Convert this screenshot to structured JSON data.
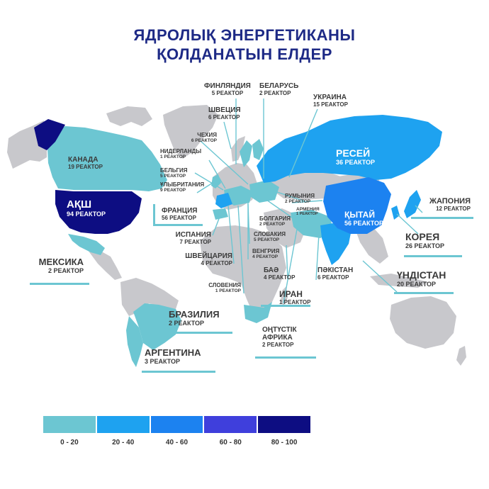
{
  "title": {
    "line1": "ЯДРОЛЫҚ ЭНЕРГЕТИКАНЫ",
    "line2": "ҚОЛДАНАТЫН ЕЛДЕР"
  },
  "colors": {
    "land": "#c8c8cc",
    "bin1": "#6cc6d2",
    "bin2": "#1ea2f0",
    "bin3": "#1c82f0",
    "bin4": "#3f3fdc",
    "bin5": "#0d0d82",
    "leader": "#6cc6d2"
  },
  "labels": {
    "finland": {
      "name": "ФИНЛЯНДИЯ",
      "count": "5 РЕАКТОР"
    },
    "belarus": {
      "name": "БЕЛАРУСЬ",
      "count": "2 РЕАКТОР"
    },
    "ukraine": {
      "name": "УКРАИНА",
      "count": "15 РЕАКТОР"
    },
    "sweden": {
      "name": "ШВЕЦИЯ",
      "count": "6 РЕАКТОР"
    },
    "czech": {
      "name": "ЧЕХИЯ",
      "count": "6 РЕАКТОР"
    },
    "netherlands": {
      "name": "НИДЕРЛАНДЫ",
      "count": "1 РЕАКТОР"
    },
    "belgium": {
      "name": "БЕЛЬГИЯ",
      "count": "5 РЕАКТОР"
    },
    "uk": {
      "name": "ҰЛЫБРИТАНИЯ",
      "count": "9 РЕАКТОР"
    },
    "france": {
      "name": "ФРАНЦИЯ",
      "count": "56 РЕАКТОР"
    },
    "spain": {
      "name": "ИСПАНИЯ",
      "count": "7 РЕАКТОР"
    },
    "switzerland": {
      "name": "ШВЕЙЦАРИЯ",
      "count": "4 РЕАКТОР"
    },
    "slovenia": {
      "name": "СЛОВЕНИЯ",
      "count": "1 РЕАКТОР"
    },
    "canada": {
      "name": "КАНАДА",
      "count": "19 РЕАКТОР"
    },
    "usa": {
      "name": "АҚШ",
      "count": "94 РЕАКТОР"
    },
    "mexico": {
      "name": "МЕКСИКА",
      "count": "2 РЕАКТОР"
    },
    "brazil": {
      "name": "БРАЗИЛИЯ",
      "count": "2 РЕАКТОР"
    },
    "argentina": {
      "name": "АРГЕНТИНА",
      "count": "3 РЕАКТОР"
    },
    "russia": {
      "name": "РЕСЕЙ",
      "count": "36 РЕАКТОР"
    },
    "romania": {
      "name": "РУМЫНИЯ",
      "count": "2 РЕАКТОР"
    },
    "armenia": {
      "name": "АРМЕНИЯ",
      "count": "1 РЕАКТОР"
    },
    "bulgaria": {
      "name": "БОЛГАРИЯ",
      "count": "2 РЕАКТОР"
    },
    "slovakia": {
      "name": "СЛОВАКИЯ",
      "count": "5 РЕАКТОР"
    },
    "hungary": {
      "name": "ВЕНГРИЯ",
      "count": "4 РЕАКТОР"
    },
    "uae": {
      "name": "БАӘ",
      "count": "4 РЕАКТОР"
    },
    "iran": {
      "name": "ИРАН",
      "count": "1 РЕАКТОР"
    },
    "china": {
      "name": "ҚЫТАЙ",
      "count": "56 РЕАКТОР"
    },
    "japan": {
      "name": "ЖАПОНИЯ",
      "count": "12 РЕАКТОР"
    },
    "korea": {
      "name": "КОРЕЯ",
      "count": "26 РЕАКТОР"
    },
    "pakistan": {
      "name": "ПӘКІСТАН",
      "count": "6 РЕАКТОР"
    },
    "india": {
      "name": "ҮНДІСТАН",
      "count": "20 РЕАКТОР"
    },
    "southafrica": {
      "name1": "ОҢТҮСТІК",
      "name2": "АФРИКА",
      "count": "2 РЕАКТОР"
    }
  },
  "legend": [
    "0 - 20",
    "20 - 40",
    "40 - 60",
    "60 - 80",
    "80 - 100"
  ]
}
